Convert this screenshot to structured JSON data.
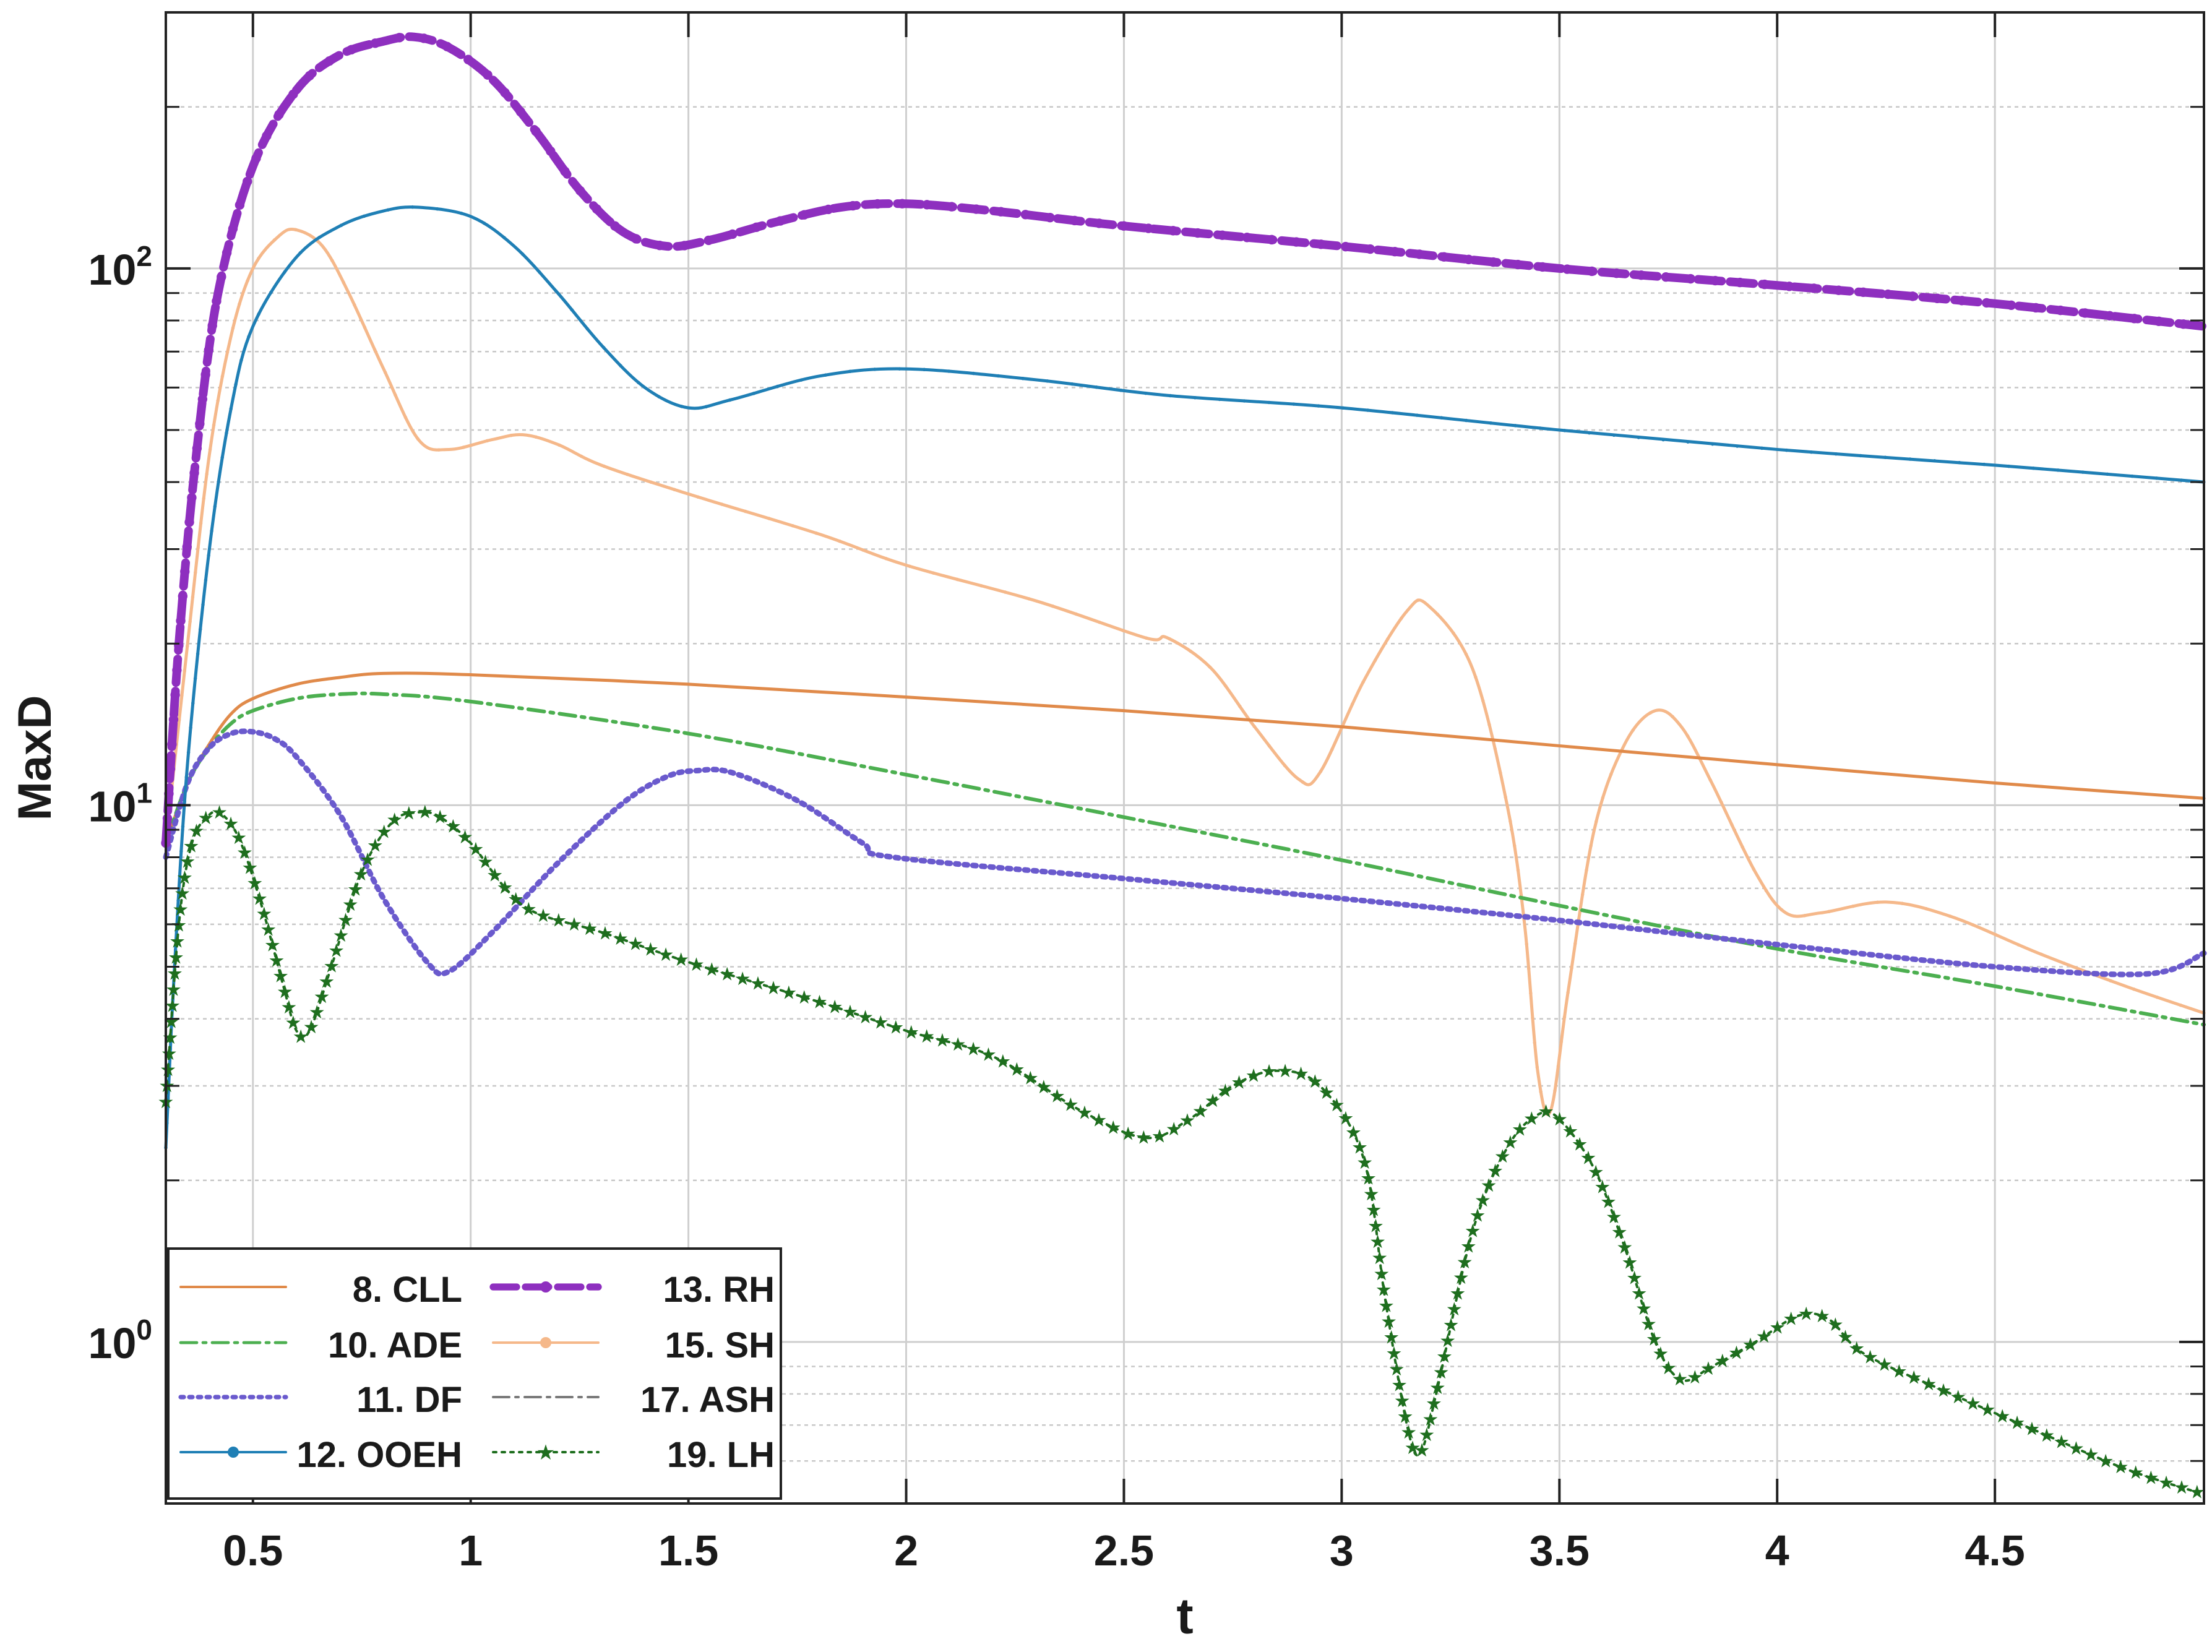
{
  "chart_data": {
    "type": "line",
    "title": "",
    "xlabel": "t",
    "ylabel": "MaxD",
    "yscale": "log",
    "xlim": [
      0.3,
      4.98
    ],
    "ylim": [
      0.5,
      300
    ],
    "grid": true,
    "legend_position": "bottom-left",
    "x_ticks": [
      "0.5",
      "1",
      "1.5",
      "2",
      "2.5",
      "3",
      "3.5",
      "4",
      "4.5"
    ],
    "y_ticks": [
      {
        "base": "10",
        "exp": "0",
        "value": 1
      },
      {
        "base": "10",
        "exp": "1",
        "value": 10
      },
      {
        "base": "10",
        "exp": "2",
        "value": 100
      }
    ],
    "series": [
      {
        "name": "8. CLL",
        "color": "#e08a4a",
        "style": "solid",
        "marker": "none",
        "points": [
          [
            0.3,
            8.5
          ],
          [
            0.35,
            11
          ],
          [
            0.4,
            13
          ],
          [
            0.45,
            14.8
          ],
          [
            0.5,
            15.8
          ],
          [
            0.6,
            16.8
          ],
          [
            0.7,
            17.3
          ],
          [
            0.8,
            17.6
          ],
          [
            1.0,
            17.5
          ],
          [
            1.5,
            16.8
          ],
          [
            2.0,
            15.9
          ],
          [
            2.5,
            15.0
          ],
          [
            3.0,
            14.0
          ],
          [
            3.5,
            12.9
          ],
          [
            4.0,
            11.9
          ],
          [
            4.5,
            11.0
          ],
          [
            4.98,
            10.3
          ]
        ]
      },
      {
        "name": "10. ADE",
        "color": "#4caf50",
        "style": "dashdot",
        "marker": "none",
        "points": [
          [
            0.3,
            8.5
          ],
          [
            0.35,
            11
          ],
          [
            0.4,
            12.8
          ],
          [
            0.45,
            14.2
          ],
          [
            0.5,
            15.0
          ],
          [
            0.6,
            15.8
          ],
          [
            0.7,
            16.1
          ],
          [
            0.8,
            16.1
          ],
          [
            1.0,
            15.6
          ],
          [
            1.5,
            13.6
          ],
          [
            2.0,
            11.4
          ],
          [
            2.5,
            9.5
          ],
          [
            3.0,
            7.9
          ],
          [
            3.5,
            6.5
          ],
          [
            4.0,
            5.4
          ],
          [
            4.5,
            4.6
          ],
          [
            4.98,
            3.9
          ]
        ]
      },
      {
        "name": "11. DF",
        "color": "#6a5acd",
        "style": "dotted",
        "marker": "none",
        "points": [
          [
            0.3,
            8.0
          ],
          [
            0.35,
            11
          ],
          [
            0.4,
            12.8
          ],
          [
            0.45,
            13.6
          ],
          [
            0.5,
            13.7
          ],
          [
            0.55,
            13.3
          ],
          [
            0.6,
            12.3
          ],
          [
            0.7,
            9.6
          ],
          [
            0.8,
            6.7
          ],
          [
            0.9,
            5.1
          ],
          [
            0.95,
            4.9
          ],
          [
            1.05,
            5.8
          ],
          [
            1.2,
            7.8
          ],
          [
            1.35,
            10.1
          ],
          [
            1.45,
            11.3
          ],
          [
            1.52,
            11.6
          ],
          [
            1.6,
            11.5
          ],
          [
            1.75,
            10.2
          ],
          [
            1.9,
            8.5
          ],
          [
            1.97,
            8.0
          ],
          [
            2.5,
            7.3
          ],
          [
            3.0,
            6.7
          ],
          [
            3.5,
            6.1
          ],
          [
            4.0,
            5.5
          ],
          [
            4.5,
            5.0
          ],
          [
            4.85,
            4.85
          ],
          [
            4.98,
            5.3
          ]
        ]
      },
      {
        "name": "12. OOEH",
        "color": "#1f7fb5",
        "style": "solid",
        "marker": "dot",
        "points": [
          [
            0.3,
            2.3
          ],
          [
            0.32,
            5.0
          ],
          [
            0.35,
            12
          ],
          [
            0.4,
            30
          ],
          [
            0.45,
            55
          ],
          [
            0.5,
            78
          ],
          [
            0.6,
            105
          ],
          [
            0.7,
            120
          ],
          [
            0.8,
            128
          ],
          [
            0.88,
            130
          ],
          [
            1.0,
            125
          ],
          [
            1.1,
            110
          ],
          [
            1.2,
            90
          ],
          [
            1.3,
            72
          ],
          [
            1.4,
            60
          ],
          [
            1.5,
            55
          ],
          [
            1.6,
            57
          ],
          [
            1.8,
            63
          ],
          [
            2.0,
            65
          ],
          [
            2.3,
            62
          ],
          [
            2.6,
            58
          ],
          [
            3.0,
            55
          ],
          [
            3.5,
            50
          ],
          [
            4.0,
            46
          ],
          [
            4.5,
            43
          ],
          [
            4.98,
            40
          ]
        ]
      },
      {
        "name": "13. RH",
        "color": "#8e2fbf",
        "style": "dashed",
        "marker": "dot",
        "points": [
          [
            0.3,
            8.5
          ],
          [
            0.33,
            20
          ],
          [
            0.37,
            45
          ],
          [
            0.42,
            90
          ],
          [
            0.5,
            155
          ],
          [
            0.6,
            215
          ],
          [
            0.7,
            250
          ],
          [
            0.8,
            265
          ],
          [
            0.87,
            270
          ],
          [
            0.95,
            258
          ],
          [
            1.05,
            225
          ],
          [
            1.15,
            180
          ],
          [
            1.25,
            140
          ],
          [
            1.35,
            117
          ],
          [
            1.45,
            110
          ],
          [
            1.55,
            113
          ],
          [
            1.7,
            122
          ],
          [
            1.85,
            130
          ],
          [
            2.0,
            132
          ],
          [
            2.2,
            128
          ],
          [
            2.5,
            120
          ],
          [
            3.0,
            110
          ],
          [
            3.5,
            100
          ],
          [
            4.0,
            93
          ],
          [
            4.5,
            86
          ],
          [
            4.98,
            78
          ]
        ]
      },
      {
        "name": "15. SH",
        "color": "#f5b88a",
        "style": "solid",
        "marker": "dot",
        "points": [
          [
            0.3,
            8.5
          ],
          [
            0.35,
            20
          ],
          [
            0.4,
            45
          ],
          [
            0.45,
            75
          ],
          [
            0.5,
            100
          ],
          [
            0.56,
            115
          ],
          [
            0.6,
            118
          ],
          [
            0.66,
            110
          ],
          [
            0.72,
            90
          ],
          [
            0.8,
            65
          ],
          [
            0.88,
            48
          ],
          [
            0.95,
            46
          ],
          [
            1.05,
            48
          ],
          [
            1.12,
            49
          ],
          [
            1.2,
            47
          ],
          [
            1.3,
            43
          ],
          [
            1.5,
            38
          ],
          [
            1.8,
            32
          ],
          [
            2.0,
            28
          ],
          [
            2.3,
            24
          ],
          [
            2.55,
            20.5
          ],
          [
            2.6,
            20.5
          ],
          [
            2.7,
            18
          ],
          [
            2.8,
            14
          ],
          [
            2.9,
            11.2
          ],
          [
            2.95,
            11.5
          ],
          [
            3.05,
            17
          ],
          [
            3.15,
            23
          ],
          [
            3.2,
            23.5
          ],
          [
            3.3,
            18
          ],
          [
            3.38,
            10
          ],
          [
            3.42,
            6
          ],
          [
            3.45,
            3.2
          ],
          [
            3.48,
            2.7
          ],
          [
            3.52,
            4.5
          ],
          [
            3.58,
            9
          ],
          [
            3.65,
            13
          ],
          [
            3.72,
            15
          ],
          [
            3.78,
            14
          ],
          [
            3.85,
            11
          ],
          [
            3.95,
            7.5
          ],
          [
            4.02,
            6.3
          ],
          [
            4.1,
            6.3
          ],
          [
            4.25,
            6.6
          ],
          [
            4.4,
            6.2
          ],
          [
            4.6,
            5.3
          ],
          [
            4.8,
            4.6
          ],
          [
            4.98,
            4.1
          ]
        ]
      },
      {
        "name": "17. ASH",
        "color": "#7a7a7a",
        "style": "dashdot",
        "marker": "none",
        "points": [
          [
            0.3,
            8.5
          ],
          [
            0.35,
            20
          ],
          [
            0.4,
            45
          ],
          [
            0.45,
            75
          ],
          [
            0.5,
            100
          ],
          [
            0.56,
            115
          ],
          [
            0.6,
            118
          ],
          [
            0.66,
            110
          ],
          [
            0.72,
            90
          ],
          [
            0.8,
            65
          ],
          [
            0.88,
            48
          ],
          [
            0.95,
            46
          ],
          [
            1.05,
            48
          ],
          [
            1.12,
            49
          ],
          [
            1.2,
            47
          ],
          [
            1.3,
            43
          ],
          [
            1.5,
            38
          ],
          [
            1.8,
            32
          ],
          [
            2.0,
            28
          ],
          [
            2.3,
            24
          ],
          [
            2.55,
            20.5
          ],
          [
            2.6,
            20.5
          ],
          [
            2.7,
            18
          ],
          [
            2.8,
            14
          ],
          [
            2.9,
            11.2
          ],
          [
            2.95,
            11.5
          ],
          [
            3.05,
            17
          ],
          [
            3.15,
            23
          ],
          [
            3.2,
            23.5
          ],
          [
            3.3,
            18
          ],
          [
            3.38,
            10
          ],
          [
            3.42,
            6
          ],
          [
            3.45,
            3.2
          ],
          [
            3.48,
            2.7
          ],
          [
            3.52,
            4.5
          ],
          [
            3.58,
            9
          ],
          [
            3.65,
            13
          ],
          [
            3.72,
            15
          ],
          [
            3.78,
            14
          ],
          [
            3.85,
            11
          ],
          [
            3.95,
            7.5
          ],
          [
            4.02,
            6.3
          ],
          [
            4.1,
            6.3
          ],
          [
            4.25,
            6.6
          ],
          [
            4.4,
            6.2
          ],
          [
            4.6,
            5.3
          ],
          [
            4.8,
            4.6
          ],
          [
            4.98,
            4.1
          ]
        ]
      },
      {
        "name": "19. LH",
        "color": "#1e6e1e",
        "style": "dotted",
        "marker": "star",
        "points": [
          [
            0.3,
            2.8
          ],
          [
            0.33,
            6.0
          ],
          [
            0.36,
            8.5
          ],
          [
            0.4,
            9.6
          ],
          [
            0.43,
            9.6
          ],
          [
            0.47,
            8.6
          ],
          [
            0.52,
            6.5
          ],
          [
            0.57,
            4.6
          ],
          [
            0.6,
            3.8
          ],
          [
            0.63,
            3.8
          ],
          [
            0.68,
            5.0
          ],
          [
            0.75,
            7.5
          ],
          [
            0.82,
            9.3
          ],
          [
            0.88,
            9.7
          ],
          [
            0.93,
            9.5
          ],
          [
            1.0,
            8.5
          ],
          [
            1.08,
            7.0
          ],
          [
            1.15,
            6.3
          ],
          [
            1.3,
            5.8
          ],
          [
            1.5,
            5.1
          ],
          [
            1.8,
            4.3
          ],
          [
            2.0,
            3.8
          ],
          [
            2.2,
            3.4
          ],
          [
            2.4,
            2.7
          ],
          [
            2.55,
            2.4
          ],
          [
            2.65,
            2.6
          ],
          [
            2.75,
            3.0
          ],
          [
            2.85,
            3.2
          ],
          [
            2.95,
            3.0
          ],
          [
            3.05,
            2.2
          ],
          [
            3.1,
            1.2
          ],
          [
            3.15,
            0.7
          ],
          [
            3.18,
            0.62
          ],
          [
            3.22,
            0.82
          ],
          [
            3.3,
            1.6
          ],
          [
            3.38,
            2.3
          ],
          [
            3.45,
            2.65
          ],
          [
            3.5,
            2.6
          ],
          [
            3.58,
            2.1
          ],
          [
            3.65,
            1.5
          ],
          [
            3.72,
            1.0
          ],
          [
            3.78,
            0.85
          ],
          [
            3.85,
            0.9
          ],
          [
            3.95,
            1.0
          ],
          [
            4.05,
            1.12
          ],
          [
            4.12,
            1.1
          ],
          [
            4.2,
            0.95
          ],
          [
            4.4,
            0.8
          ],
          [
            4.6,
            0.68
          ],
          [
            4.8,
            0.58
          ],
          [
            4.98,
            0.52
          ]
        ]
      }
    ]
  }
}
